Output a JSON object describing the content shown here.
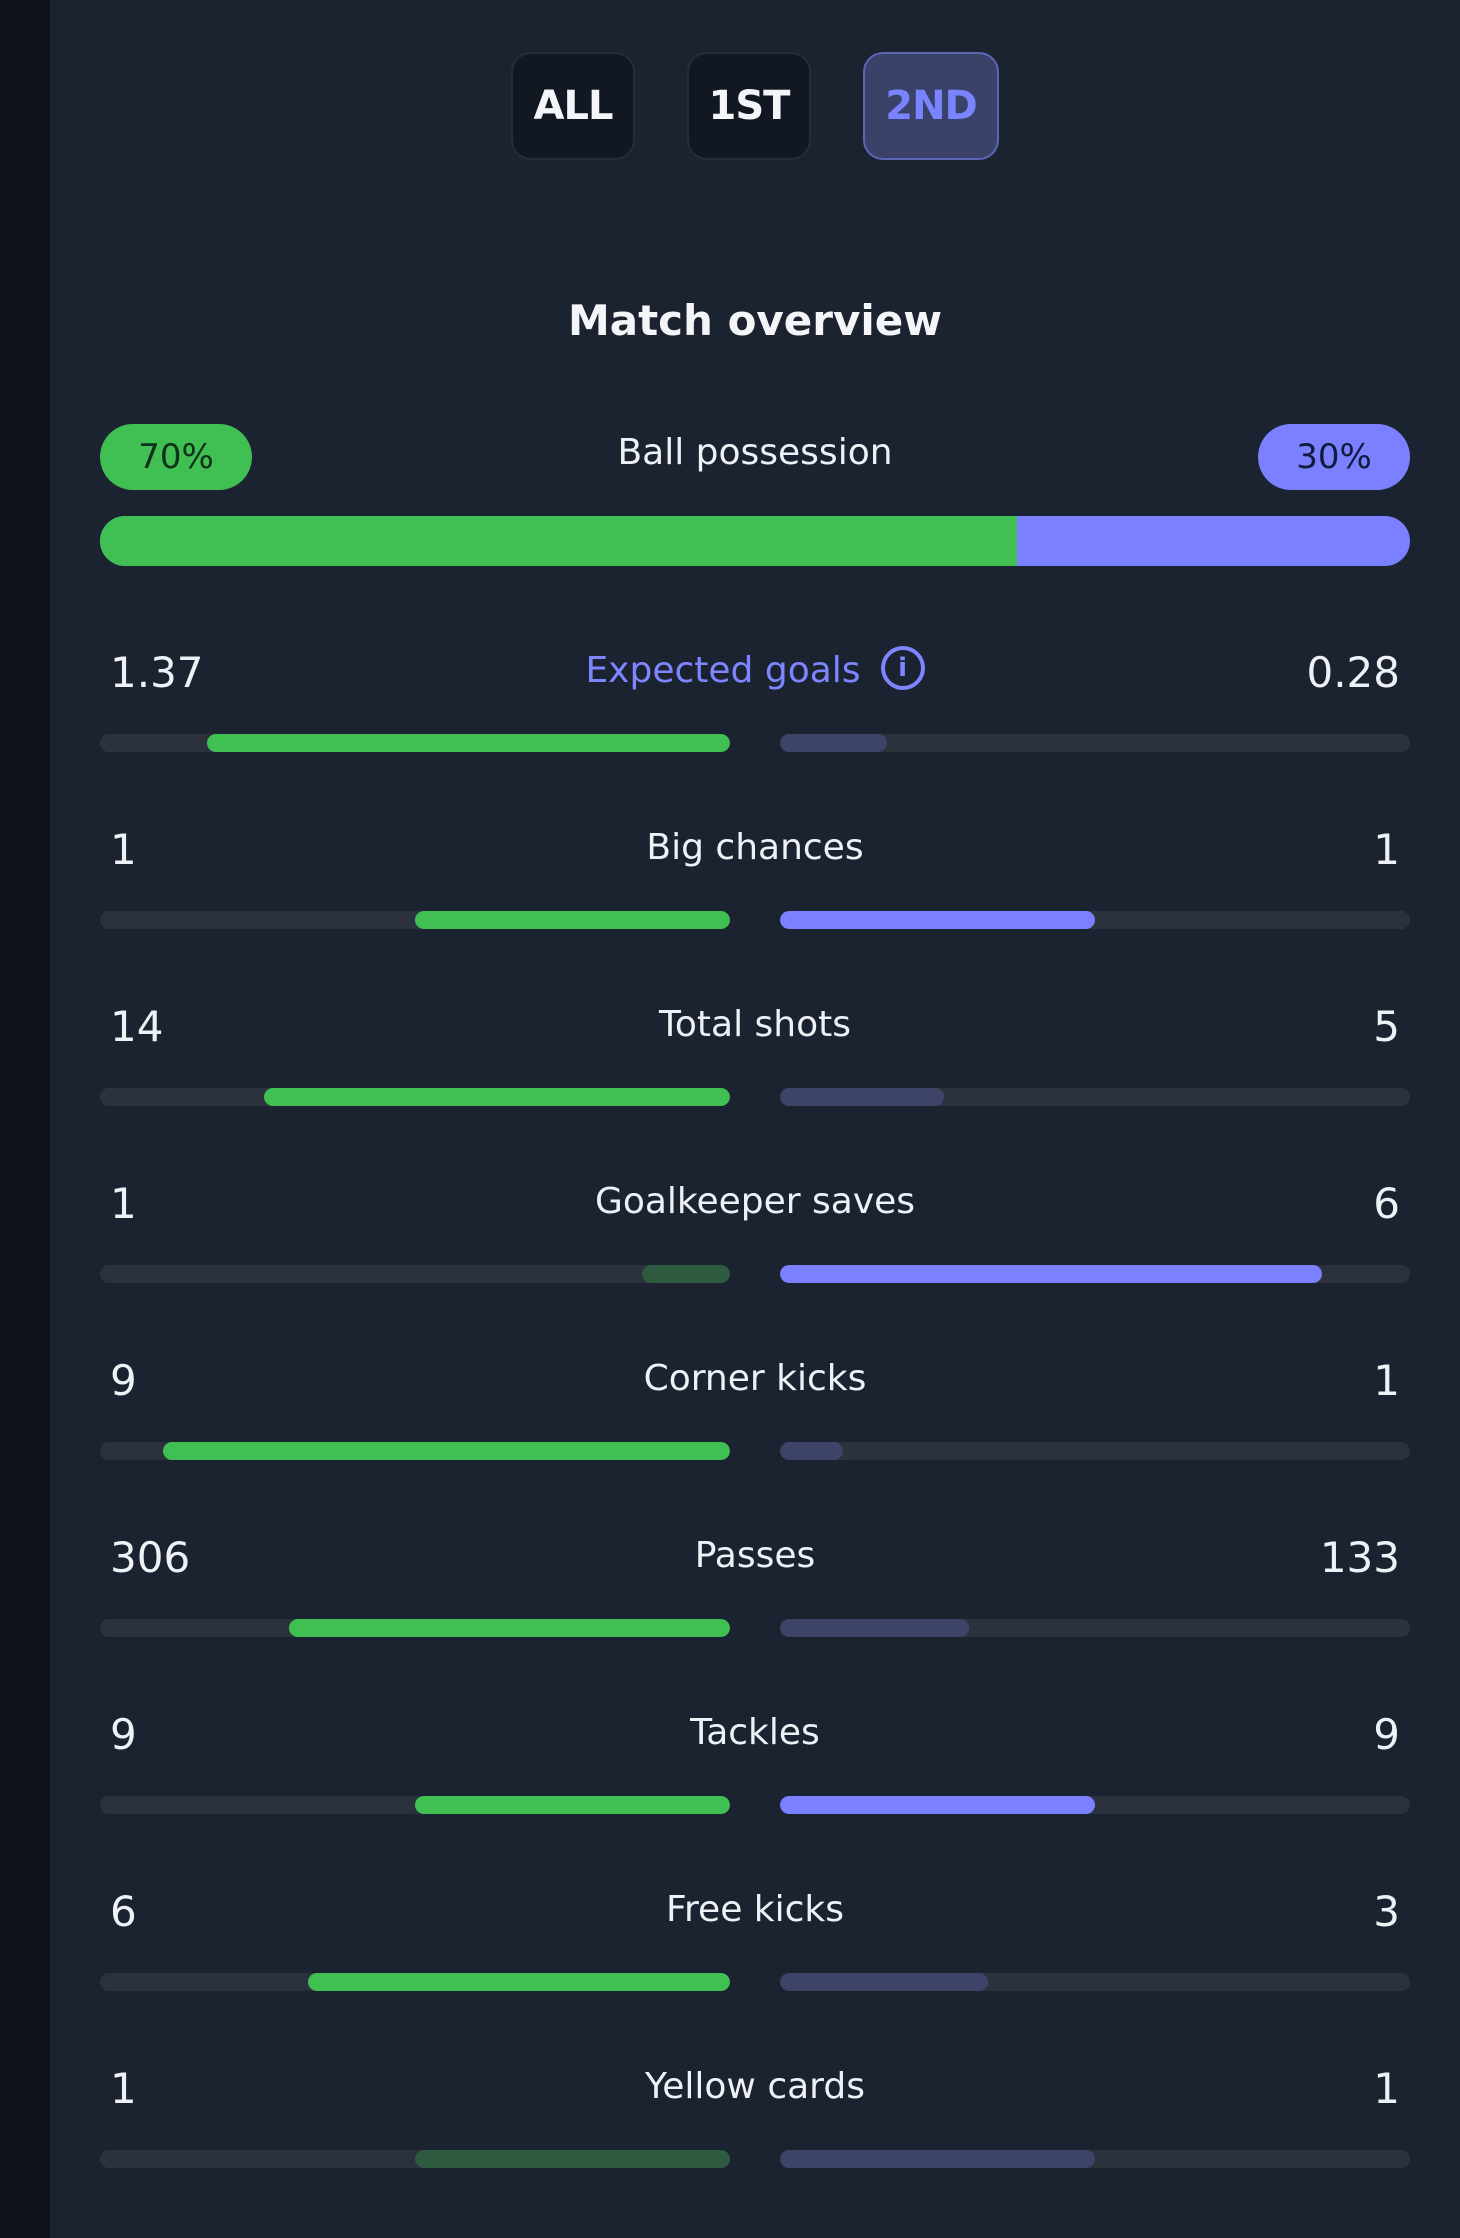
{
  "tabs": [
    {
      "label": "ALL",
      "active": false
    },
    {
      "label": "1ST",
      "active": false
    },
    {
      "label": "2ND",
      "active": true
    }
  ],
  "section_title": "Match overview",
  "possession": {
    "label": "Ball possession",
    "home": "70%",
    "away": "30%",
    "home_fraction": 0.7
  },
  "colors": {
    "home_strong": "#40c053",
    "home_weak": "#2e5a3f",
    "away_strong": "#7a80ff",
    "away_weak": "#3d4468",
    "track": "#2b323e"
  },
  "stats": [
    {
      "label": "Expected goals",
      "home": "1.37",
      "away": "0.28",
      "home_fraction": 0.83,
      "away_fraction": 0.17,
      "home_leads": true,
      "away_leads": false,
      "link": true
    },
    {
      "label": "Big chances",
      "home": "1",
      "away": "1",
      "home_fraction": 0.5,
      "away_fraction": 0.5,
      "home_leads": true,
      "away_leads": true,
      "link": false
    },
    {
      "label": "Total shots",
      "home": "14",
      "away": "5",
      "home_fraction": 0.74,
      "away_fraction": 0.26,
      "home_leads": true,
      "away_leads": false,
      "link": false
    },
    {
      "label": "Goalkeeper saves",
      "home": "1",
      "away": "6",
      "home_fraction": 0.14,
      "away_fraction": 0.86,
      "home_leads": false,
      "away_leads": true,
      "link": false
    },
    {
      "label": "Corner kicks",
      "home": "9",
      "away": "1",
      "home_fraction": 0.9,
      "away_fraction": 0.1,
      "home_leads": true,
      "away_leads": false,
      "link": false
    },
    {
      "label": "Passes",
      "home": "306",
      "away": "133",
      "home_fraction": 0.7,
      "away_fraction": 0.3,
      "home_leads": true,
      "away_leads": false,
      "link": false
    },
    {
      "label": "Tackles",
      "home": "9",
      "away": "9",
      "home_fraction": 0.5,
      "away_fraction": 0.5,
      "home_leads": true,
      "away_leads": true,
      "link": false
    },
    {
      "label": "Free kicks",
      "home": "6",
      "away": "3",
      "home_fraction": 0.67,
      "away_fraction": 0.33,
      "home_leads": true,
      "away_leads": false,
      "link": false
    },
    {
      "label": "Yellow cards",
      "home": "1",
      "away": "1",
      "home_fraction": 0.5,
      "away_fraction": 0.5,
      "home_leads": false,
      "away_leads": false,
      "link": false
    }
  ]
}
